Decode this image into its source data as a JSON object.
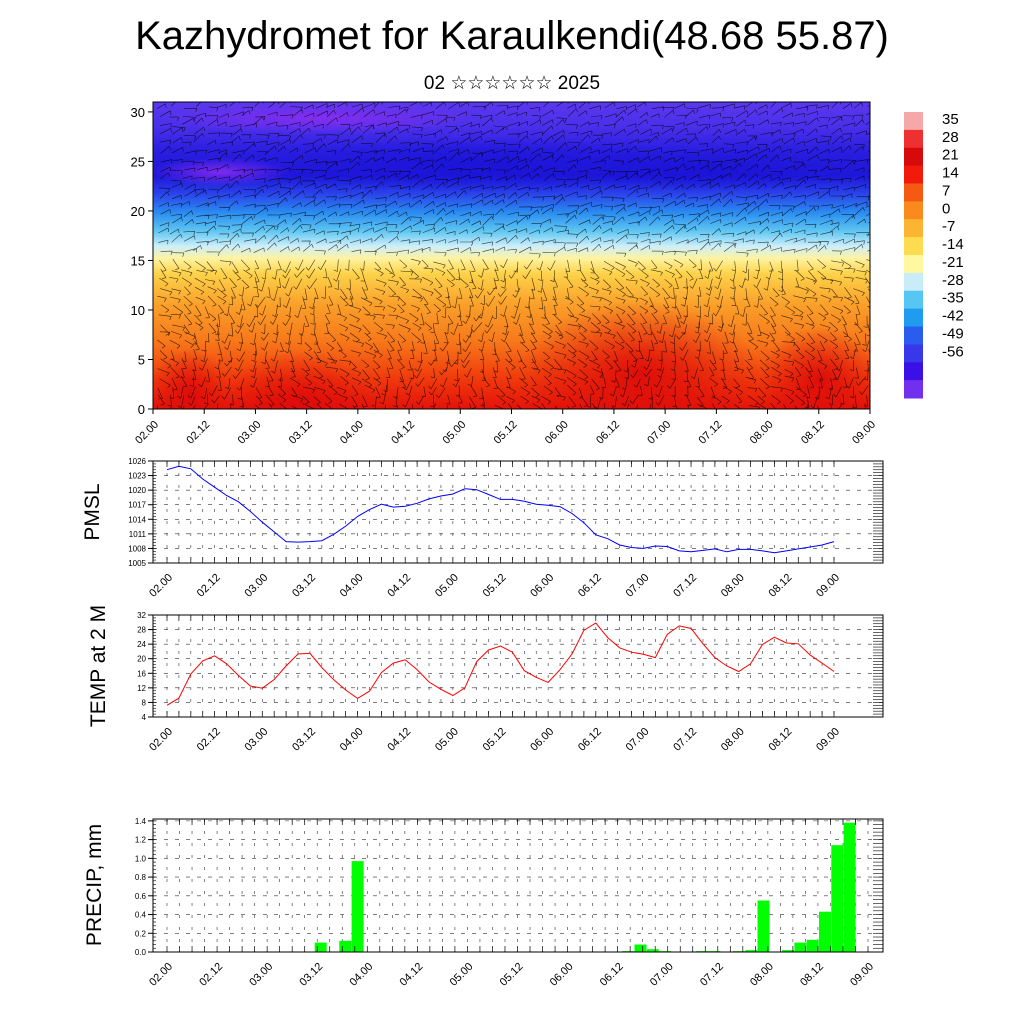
{
  "page": {
    "title": "Kazhydromet for Karaulkendi(48.68 55.87)",
    "subtitle": "02 ☆☆☆☆☆☆ 2025"
  },
  "chart_data": [
    {
      "id": "cross-section",
      "type": "heatmap",
      "x_ticks": [
        "02.00",
        "02.12",
        "03.00",
        "03.12",
        "04.00",
        "04.12",
        "05.00",
        "05.12",
        "06.00",
        "06.12",
        "07.00",
        "07.12",
        "08.00",
        "08.12",
        "09.00"
      ],
      "y_ticks": [
        0,
        5,
        10,
        15,
        20,
        25,
        30
      ],
      "ylim": [
        0,
        31
      ],
      "colorbar": {
        "labels": [
          35,
          28,
          21,
          14,
          7,
          0,
          -7,
          -14,
          -21,
          -28,
          -35,
          -42,
          -49,
          -56
        ],
        "colors": [
          "#f5a8a8",
          "#ee3030",
          "#d60a0a",
          "#f21a0a",
          "#f65a12",
          "#f98a1e",
          "#fbb532",
          "#fedc50",
          "#fff8a0",
          "#c8ecf8",
          "#56c6f2",
          "#1f9cf0",
          "#2a5cf0",
          "#3838ea",
          "#3a10e6",
          "#7030ee"
        ]
      }
    },
    {
      "id": "pmsl",
      "type": "line",
      "ylabel": "PMSL",
      "x_ticks": [
        "02.00",
        "02.12",
        "03.00",
        "03.12",
        "04.00",
        "04.12",
        "05.00",
        "05.12",
        "06.00",
        "06.12",
        "07.00",
        "07.12",
        "08.00",
        "08.12",
        "09.00"
      ],
      "y_ticks": [
        1005,
        1008,
        1011,
        1014,
        1017,
        1020,
        1023,
        1026
      ],
      "ylim": [
        1005,
        1026
      ],
      "color": "#0000ff",
      "values": [
        1024.2,
        1024.9,
        1024.4,
        1022.3,
        1020.6,
        1018.9,
        1017.6,
        1015.6,
        1013.4,
        1011.4,
        1009.4,
        1009.3,
        1009.4,
        1009.6,
        1010.9,
        1012.6,
        1014.6,
        1016.0,
        1017.1,
        1016.5,
        1016.7,
        1017.3,
        1018.2,
        1018.8,
        1019.2,
        1020.3,
        1020.1,
        1019.1,
        1018.1,
        1018.1,
        1017.7,
        1017.1,
        1016.9,
        1016.6,
        1015.2,
        1013.3,
        1010.8,
        1010.0,
        1008.7,
        1008.2,
        1008.0,
        1008.5,
        1008.4,
        1007.5,
        1007.3,
        1007.6,
        1007.9,
        1007.3,
        1007.8,
        1007.8,
        1007.5,
        1007.1,
        1007.5,
        1007.9,
        1008.3,
        1008.7,
        1009.4
      ]
    },
    {
      "id": "temp",
      "type": "line",
      "ylabel": "TEMP at 2 M",
      "x_ticks": [
        "02.00",
        "02.12",
        "03.00",
        "03.12",
        "04.00",
        "04.12",
        "05.00",
        "05.12",
        "06.00",
        "06.12",
        "07.00",
        "07.12",
        "08.00",
        "08.12",
        "09.00"
      ],
      "y_ticks": [
        4,
        8,
        12,
        16,
        20,
        24,
        28,
        32
      ],
      "ylim": [
        4,
        32
      ],
      "color": "#ff0000",
      "values": [
        7.2,
        9.2,
        15.8,
        19.4,
        20.8,
        18.6,
        15.4,
        12.5,
        11.9,
        14.3,
        18.0,
        21.3,
        21.5,
        17.6,
        14.2,
        11.4,
        9.1,
        11.1,
        16.2,
        18.8,
        19.7,
        17.0,
        13.6,
        11.6,
        9.9,
        12.0,
        19.2,
        22.4,
        23.5,
        21.8,
        16.7,
        14.9,
        13.5,
        17.0,
        21.3,
        27.8,
        29.8,
        25.8,
        23.0,
        21.8,
        21.2,
        20.3,
        26.7,
        29.0,
        28.3,
        24.1,
        20.3,
        18.0,
        16.5,
        18.6,
        23.9,
        25.9,
        24.3,
        24.1,
        21.0,
        18.8,
        16.5
      ]
    },
    {
      "id": "precip",
      "type": "bar",
      "ylabel": "PRECIP, mm",
      "x_ticks": [
        "02.00",
        "02.12",
        "03.00",
        "03.12",
        "04.00",
        "04.12",
        "05.00",
        "05.12",
        "06.00",
        "06.12",
        "07.00",
        "07.12",
        "08.00",
        "08.12",
        "09.00"
      ],
      "y_ticks": [
        "0.0",
        "0.2",
        "0.4",
        "0.6",
        "0.8",
        "1.0",
        "1.2",
        "1.4"
      ],
      "ylim": [
        0,
        1.42
      ],
      "color": "#00ff00",
      "values": [
        0,
        0,
        0,
        0,
        0,
        0,
        0,
        0,
        0,
        0,
        0,
        0,
        0.1,
        0,
        0.12,
        0.97,
        0,
        0,
        0,
        0,
        0,
        0,
        0,
        0,
        0,
        0,
        0,
        0,
        0,
        0,
        0,
        0,
        0,
        0,
        0,
        0,
        0,
        0.01,
        0.08,
        0.03,
        0.01,
        0,
        0,
        0.01,
        0.01,
        0,
        0.01,
        0.02,
        0.55,
        0,
        0.02,
        0.1,
        0.13,
        0.43,
        1.14,
        1.38,
        0
      ]
    }
  ]
}
